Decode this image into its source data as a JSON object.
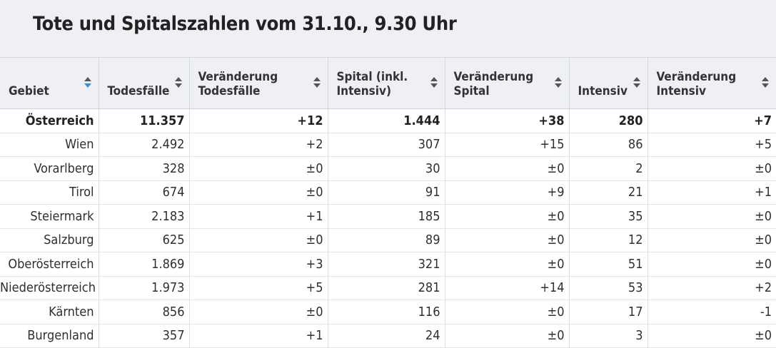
{
  "title": "Tote und Spitalszahlen vom 31.10., 9.30 Uhr",
  "columns": [
    {
      "label": "Gebiet",
      "sort_icon": "sort-icon-active"
    },
    {
      "label": "Todesfälle",
      "sort_icon": "sort-icon"
    },
    {
      "label": "Veränderung Todesfälle",
      "sort_icon": "sort-icon"
    },
    {
      "label": "Spital (inkl. Intensiv)",
      "sort_icon": "sort-icon"
    },
    {
      "label": "Veränderung Spital",
      "sort_icon": "sort-icon"
    },
    {
      "label": "Intensiv",
      "sort_icon": "sort-icon"
    },
    {
      "label": "Veränderung Intensiv",
      "sort_icon": "sort-icon"
    }
  ],
  "rows": [
    [
      "Österreich",
      "11.357",
      "+12",
      "1.444",
      "+38",
      "280",
      "+7"
    ],
    [
      "Wien",
      "2.492",
      "+2",
      "307",
      "+15",
      "86",
      "+5"
    ],
    [
      "Vorarlberg",
      "328",
      "±0",
      "30",
      "±0",
      "2",
      "±0"
    ],
    [
      "Tirol",
      "674",
      "±0",
      "91",
      "+9",
      "21",
      "+1"
    ],
    [
      "Steiermark",
      "2.183",
      "+1",
      "185",
      "±0",
      "35",
      "±0"
    ],
    [
      "Salzburg",
      "625",
      "±0",
      "89",
      "±0",
      "12",
      "±0"
    ],
    [
      "Oberösterreich",
      "1.869",
      "+3",
      "321",
      "±0",
      "51",
      "±0"
    ],
    [
      "Niederösterreich",
      "1.973",
      "+5",
      "281",
      "+14",
      "53",
      "+2"
    ],
    [
      "Kärnten",
      "856",
      "±0",
      "116",
      "±0",
      "17",
      "-1"
    ],
    [
      "Burgenland",
      "357",
      "+1",
      "24",
      "±0",
      "3",
      "±0"
    ]
  ],
  "colors": {
    "header_bg": "#eef0f3",
    "active_sort": "#3a8dde"
  }
}
